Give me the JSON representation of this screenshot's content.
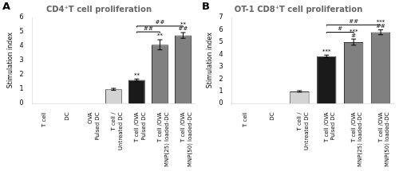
{
  "chart_data": [
    {
      "type": "bar",
      "panel": "A",
      "title": "CD4⁺T cell proliferation",
      "ylabel": "Stimulation index",
      "categories": [
        "T cell",
        "DC",
        "OVA\nPulsed DC",
        "T cell /\nUntreated DC",
        "T cell /OVA\nPulsed DC",
        "T cell /OVA\nMNP(25) loaded-DC",
        "T cell /OVA\nMNP(50) loaded-DC"
      ],
      "values": [
        0,
        0,
        0,
        1.0,
        1.65,
        4.1,
        4.75
      ],
      "errors": [
        0,
        0,
        0,
        0.07,
        0.07,
        0.35,
        0.2
      ],
      "colors": [
        "#d3d3d3",
        "#d3d3d3",
        "#d3d3d3",
        "#d3d3d3",
        "#1a1a1a",
        "#808080",
        "#808080"
      ],
      "ylim": [
        0,
        6
      ],
      "yticks": [
        0,
        1,
        2,
        3,
        4,
        5,
        6
      ],
      "grid": false,
      "annotations": [
        {
          "category": "T cell /OVA\nPulsed DC",
          "text": "**"
        },
        {
          "category": "T cell /OVA\nMNP(25) loaded-DC",
          "text": "**"
        },
        {
          "category": "T cell /OVA\nMNP(50) loaded-DC",
          "text": "##\n**"
        }
      ],
      "brackets": [
        {
          "from": "T cell /OVA\nPulsed DC",
          "to": "T cell /OVA\nMNP(25) loaded-DC",
          "y": 5.0,
          "label": "##"
        },
        {
          "from": "T cell /OVA\nPulsed DC",
          "to": "T cell /OVA\nMNP(50) loaded-DC",
          "y": 5.4,
          "label": "##"
        }
      ]
    },
    {
      "type": "bar",
      "panel": "B",
      "title": "OT-1 CD8⁺T cell proliferation",
      "ylabel": "Stimulation index",
      "categories": [
        "T cell",
        "DC",
        "T cell /\nUntreated DC",
        "T cell /OVA\nPulsed DC",
        "T cell /OVA\nMNP(25) loaded-DC",
        "T cell /OVA\nMNP(50) loaded-DC"
      ],
      "values": [
        0,
        0,
        1.0,
        3.85,
        5.0,
        5.8
      ],
      "errors": [
        0,
        0,
        0.06,
        0.1,
        0.25,
        0.2
      ],
      "colors": [
        "#d3d3d3",
        "#d3d3d3",
        "#d3d3d3",
        "#1a1a1a",
        "#808080",
        "#808080"
      ],
      "ylim": [
        0,
        7
      ],
      "yticks": [
        0,
        1,
        2,
        3,
        4,
        5,
        6,
        7
      ],
      "grid": false,
      "annotations": [
        {
          "category": "T cell /OVA\nPulsed DC",
          "text": "***"
        },
        {
          "category": "T cell /OVA\nMNP(25) loaded-DC",
          "text": "#\n***"
        },
        {
          "category": "T cell /OVA\nMNP(50) loaded-DC",
          "text": "##\n***"
        }
      ],
      "brackets": [
        {
          "from": "T cell /OVA\nPulsed DC",
          "to": "T cell /OVA\nMNP(25) loaded-DC",
          "y": 5.8,
          "label": "#"
        },
        {
          "from": "T cell /OVA\nPulsed DC",
          "to": "T cell /OVA\nMNP(50) loaded-DC",
          "y": 6.4,
          "label": "##"
        }
      ]
    }
  ]
}
